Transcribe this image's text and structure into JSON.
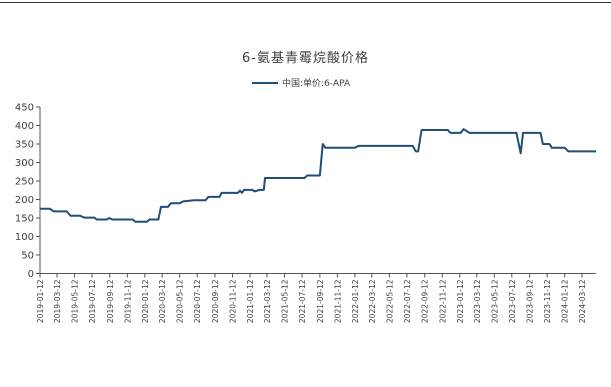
{
  "chart_data": {
    "type": "line",
    "title": "6-氨基青霉烷酸价格",
    "legend": {
      "position": "top-center"
    },
    "series": [
      {
        "name": "中国:单价:6-APA",
        "color": "#1f4e79",
        "points": [
          [
            "2019-01-12",
            175
          ],
          [
            "2019-02-01",
            175
          ],
          [
            "2019-02-15",
            175
          ],
          [
            "2019-02-28",
            168
          ],
          [
            "2019-04-15",
            168
          ],
          [
            "2019-04-28",
            156
          ],
          [
            "2019-06-01",
            156
          ],
          [
            "2019-06-15",
            151
          ],
          [
            "2019-07-20",
            151
          ],
          [
            "2019-07-28",
            146
          ],
          [
            "2019-09-01",
            146
          ],
          [
            "2019-09-10",
            150
          ],
          [
            "2019-09-20",
            146
          ],
          [
            "2019-12-01",
            146
          ],
          [
            "2019-12-10",
            140
          ],
          [
            "2020-01-20",
            140
          ],
          [
            "2020-01-28",
            146
          ],
          [
            "2020-02-28",
            146
          ],
          [
            "2020-03-08",
            180
          ],
          [
            "2020-04-01",
            180
          ],
          [
            "2020-04-12",
            190
          ],
          [
            "2020-05-12",
            190
          ],
          [
            "2020-05-25",
            195
          ],
          [
            "2020-07-01",
            198
          ],
          [
            "2020-08-10",
            198
          ],
          [
            "2020-08-20",
            207
          ],
          [
            "2020-09-28",
            207
          ],
          [
            "2020-10-05",
            218
          ],
          [
            "2020-12-01",
            218
          ],
          [
            "2020-12-08",
            224
          ],
          [
            "2020-12-15",
            218
          ],
          [
            "2020-12-22",
            226
          ],
          [
            "2021-01-20",
            226
          ],
          [
            "2021-01-28",
            222
          ],
          [
            "2021-02-15",
            226
          ],
          [
            "2021-03-01",
            226
          ],
          [
            "2021-03-05",
            258
          ],
          [
            "2021-07-20",
            258
          ],
          [
            "2021-07-30",
            265
          ],
          [
            "2021-09-12",
            265
          ],
          [
            "2021-09-22",
            350
          ],
          [
            "2021-10-01",
            340
          ],
          [
            "2022-01-12",
            340
          ],
          [
            "2022-01-25",
            345
          ],
          [
            "2022-08-01",
            345
          ],
          [
            "2022-08-12",
            330
          ],
          [
            "2022-08-20",
            330
          ],
          [
            "2022-09-01",
            388
          ],
          [
            "2022-12-01",
            388
          ],
          [
            "2022-12-10",
            380
          ],
          [
            "2023-01-15",
            380
          ],
          [
            "2023-01-25",
            390
          ],
          [
            "2023-02-15",
            380
          ],
          [
            "2023-07-28",
            380
          ],
          [
            "2023-08-12",
            325
          ],
          [
            "2023-08-20",
            380
          ],
          [
            "2023-10-20",
            380
          ],
          [
            "2023-10-28",
            350
          ],
          [
            "2023-11-20",
            350
          ],
          [
            "2023-11-28",
            340
          ],
          [
            "2024-01-12",
            340
          ],
          [
            "2024-01-25",
            330
          ],
          [
            "2024-04-30",
            330
          ]
        ]
      }
    ],
    "y_ticks": [
      "0",
      "50",
      "100",
      "150",
      "200",
      "250",
      "300",
      "350",
      "400",
      "450"
    ],
    "ylim": [
      0,
      450
    ],
    "x_ticks": [
      "2019-01-12",
      "2019-03-12",
      "2019-05-12",
      "2019-07-12",
      "2019-09-12",
      "2019-11-12",
      "2020-01-12",
      "2020-03-12",
      "2020-05-12",
      "2020-07-12",
      "2020-09-12",
      "2020-11-12",
      "2021-01-12",
      "2021-03-12",
      "2021-05-12",
      "2021-07-12",
      "2021-09-12",
      "2021-11-12",
      "2022-01-12",
      "2022-03-12",
      "2022-05-12",
      "2022-07-12",
      "2022-09-12",
      "2022-11-12",
      "2023-01-12",
      "2023-03-12",
      "2023-05-12",
      "2023-07-12",
      "2023-09-12",
      "2023-11-12",
      "2024-01-12",
      "2024-03-12"
    ],
    "xlim": [
      "2019-01-12",
      "2024-04-30"
    ],
    "grid": false
  }
}
